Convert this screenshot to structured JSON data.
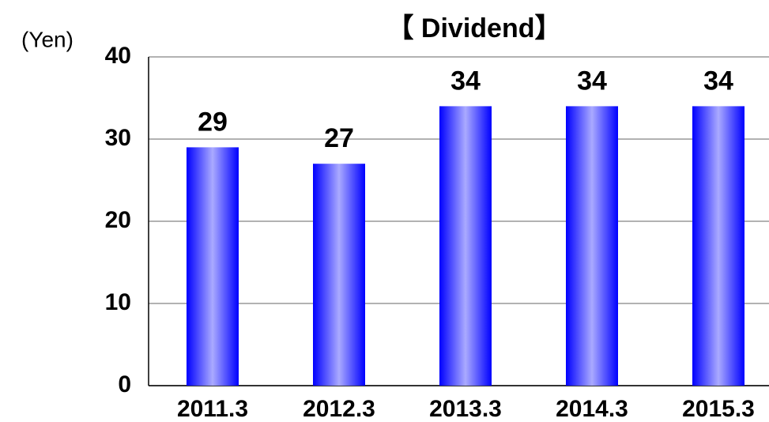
{
  "chart_data": {
    "type": "bar",
    "title": "【 Dividend】",
    "y_axis_label": "(Yen)",
    "categories": [
      "2011.3",
      "2012.3",
      "2013.3",
      "2014.3",
      "2015.3"
    ],
    "values": [
      29,
      27,
      34,
      34,
      34
    ],
    "color": "#0000ff",
    "ylim": [
      0,
      40
    ],
    "yticks": [
      0,
      10,
      20,
      30,
      40
    ],
    "grid": true
  }
}
